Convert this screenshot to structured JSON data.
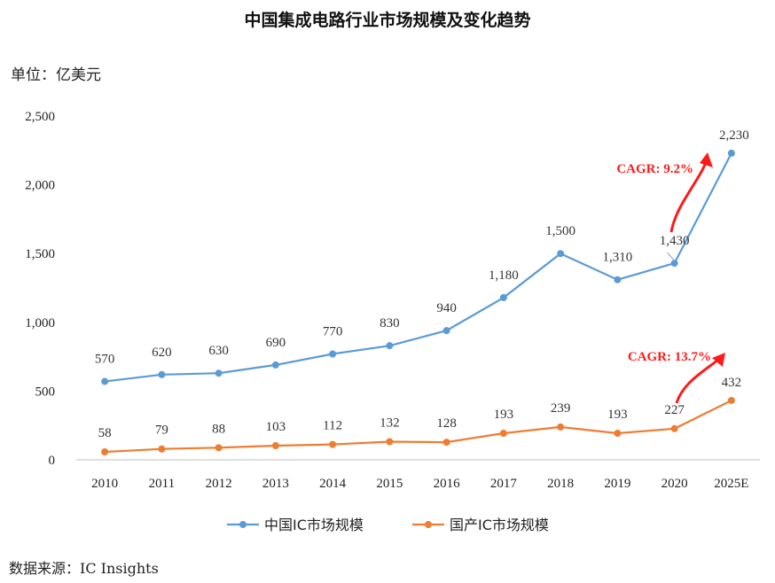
{
  "header": {
    "title": "中国集成电路行业市场规模及变化趋势",
    "unit": "单位：亿美元"
  },
  "footer": {
    "source": "数据来源：IC Insights"
  },
  "colors": {
    "series1": "#5b9bd5",
    "series2": "#ed7d31",
    "cagr": "#ff1a1a",
    "axis": "#bfbfbf"
  },
  "chart_data": {
    "type": "line",
    "title": "中国集成电路行业市场规模及变化趋势",
    "ylabel": "单位：亿美元",
    "xlabel": "",
    "categories": [
      "2010",
      "2011",
      "2012",
      "2013",
      "2014",
      "2015",
      "2016",
      "2017",
      "2018",
      "2019",
      "2020",
      "2025E"
    ],
    "ylim": [
      0,
      2500
    ],
    "yticks": [
      "0",
      "500",
      "1,000",
      "1,500",
      "2,000",
      "2,500"
    ],
    "ytick_values": [
      0,
      500,
      1000,
      1500,
      2000,
      2500
    ],
    "grid": false,
    "legend_position": "bottom",
    "series": [
      {
        "name": "中国IC市场规模",
        "values": [
          570,
          620,
          630,
          690,
          770,
          830,
          940,
          1180,
          1500,
          1310,
          1430,
          2230
        ],
        "labels": [
          "570",
          "620",
          "630",
          "690",
          "770",
          "830",
          "940",
          "1,180",
          "1,500",
          "1,310",
          "1,430",
          "2,230"
        ]
      },
      {
        "name": "国产IC市场规模",
        "values": [
          58,
          79,
          88,
          103,
          112,
          132,
          128,
          193,
          239,
          193,
          227,
          432
        ],
        "labels": [
          "58",
          "79",
          "88",
          "103",
          "112",
          "132",
          "128",
          "193",
          "239",
          "193",
          "227",
          "432"
        ]
      }
    ],
    "annotations": [
      {
        "text": "CAGR: 9.2%",
        "series": 0
      },
      {
        "text": "CAGR: 13.7%",
        "series": 1
      }
    ]
  }
}
